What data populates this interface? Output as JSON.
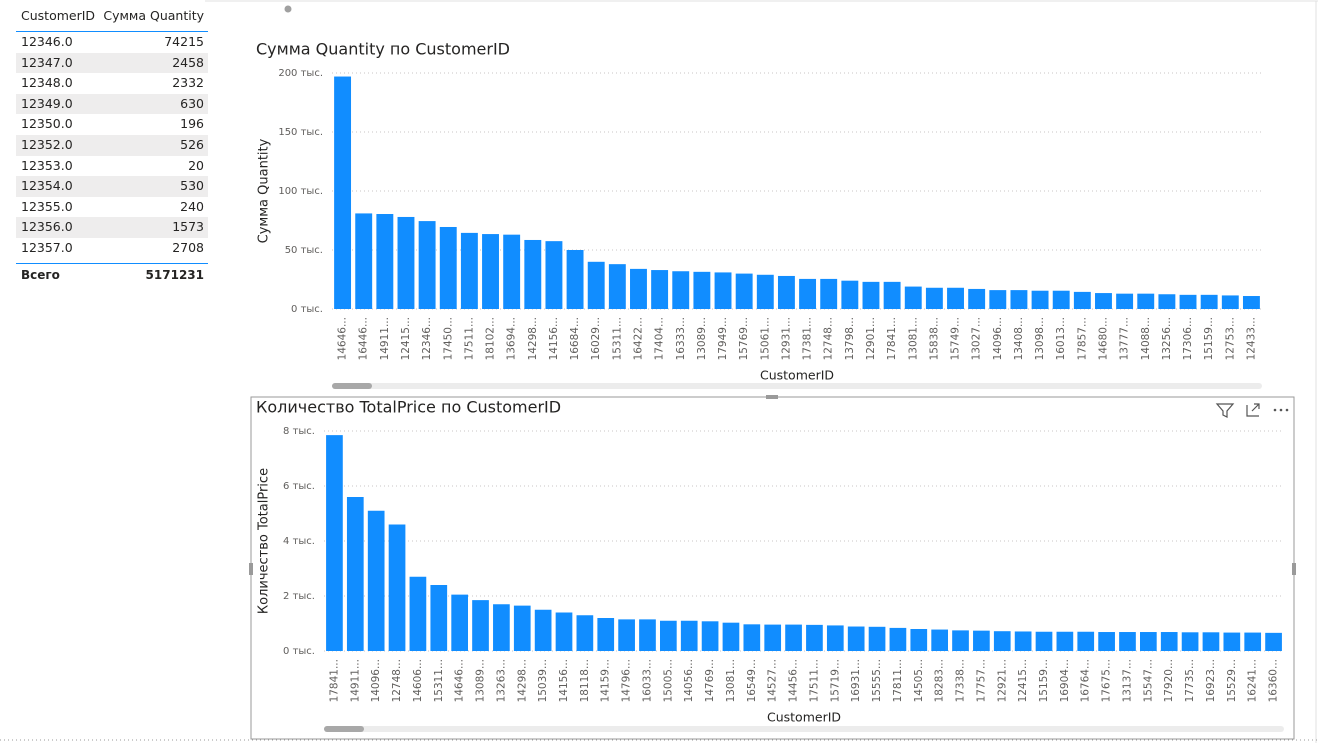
{
  "table": {
    "columns": [
      "CustomerID",
      "Сумма Quantity"
    ],
    "rows": [
      [
        "12346.0",
        74215
      ],
      [
        "12347.0",
        2458
      ],
      [
        "12348.0",
        2332
      ],
      [
        "12349.0",
        630
      ],
      [
        "12350.0",
        196
      ],
      [
        "12352.0",
        526
      ],
      [
        "12353.0",
        20
      ],
      [
        "12354.0",
        530
      ],
      [
        "12355.0",
        240
      ],
      [
        "12356.0",
        1573
      ],
      [
        "12357.0",
        2708
      ]
    ],
    "total": [
      "Всего",
      5171231
    ]
  },
  "chart_data": [
    {
      "type": "bar",
      "title": "Сумма Quantity по CustomerID",
      "x_label": "CustomerID",
      "y_label": "Сумма Quantity",
      "categories": [
        "14646...",
        "16446...",
        "14911...",
        "12415...",
        "12346...",
        "17450...",
        "17511...",
        "18102...",
        "13694...",
        "14298...",
        "14156...",
        "16684...",
        "16029...",
        "15311...",
        "16422...",
        "17404...",
        "16333...",
        "13089...",
        "17949...",
        "15769...",
        "15061...",
        "12931...",
        "17381...",
        "12748...",
        "13798...",
        "12901...",
        "17841...",
        "13081...",
        "15838...",
        "15749...",
        "13027...",
        "14096...",
        "13408...",
        "13098...",
        "16013...",
        "17857...",
        "14680...",
        "13777...",
        "14088...",
        "13256...",
        "17306...",
        "15159...",
        "12753...",
        "12433..."
      ],
      "values": [
        197000,
        81000,
        80500,
        78000,
        74500,
        69500,
        64500,
        63500,
        63000,
        58500,
        57500,
        50000,
        40000,
        38000,
        34000,
        33000,
        32000,
        31500,
        31000,
        30000,
        29000,
        28000,
        25500,
        25500,
        24000,
        23000,
        23000,
        19000,
        18000,
        18000,
        17000,
        16000,
        16000,
        15500,
        15500,
        14500,
        13500,
        13000,
        13000,
        12500,
        12000,
        12000,
        11500,
        11000
      ],
      "color": "#118dff",
      "ylim": [
        0,
        200000
      ],
      "yticks": [
        {
          "value": 0,
          "label": "0 тыс."
        },
        {
          "value": 50000,
          "label": "50 тыс."
        },
        {
          "value": 100000,
          "label": "100 тыс."
        },
        {
          "value": 150000,
          "label": "150 тыс."
        },
        {
          "value": 200000,
          "label": "200 тыс."
        }
      ],
      "grid": true
    },
    {
      "type": "bar",
      "title": "Количество TotalPrice по CustomerID",
      "x_label": "CustomerID",
      "y_label": "Количество TotalPrice",
      "categories": [
        "17841...",
        "14911...",
        "14096...",
        "12748...",
        "14606...",
        "15311...",
        "14646...",
        "13089...",
        "13263...",
        "14298...",
        "15039...",
        "14156...",
        "18118...",
        "14159...",
        "14796...",
        "16033...",
        "15005...",
        "14056...",
        "14769...",
        "13081...",
        "16549...",
        "14527...",
        "14456...",
        "17511...",
        "15719...",
        "16931...",
        "15555...",
        "17811...",
        "14505...",
        "18283...",
        "17338...",
        "17757...",
        "12921...",
        "12415...",
        "15159...",
        "16904...",
        "16764...",
        "17675...",
        "13137...",
        "15547...",
        "17920...",
        "17735...",
        "16923...",
        "15529...",
        "16241...",
        "16360..."
      ],
      "values": [
        7850,
        5600,
        5100,
        4600,
        2700,
        2400,
        2050,
        1850,
        1700,
        1650,
        1500,
        1400,
        1300,
        1200,
        1150,
        1150,
        1100,
        1100,
        1080,
        1030,
        970,
        960,
        960,
        950,
        930,
        890,
        880,
        840,
        800,
        780,
        750,
        740,
        720,
        710,
        700,
        700,
        700,
        690,
        690,
        690,
        690,
        680,
        680,
        670,
        670,
        660
      ],
      "color": "#118dff",
      "ylim": [
        0,
        8000
      ],
      "yticks": [
        {
          "value": 0,
          "label": "0 тыс."
        },
        {
          "value": 2000,
          "label": "2 тыс."
        },
        {
          "value": 4000,
          "label": "4 тыс."
        },
        {
          "value": 6000,
          "label": "6 тыс."
        },
        {
          "value": 8000,
          "label": "8 тыс."
        }
      ],
      "grid": true
    }
  ]
}
